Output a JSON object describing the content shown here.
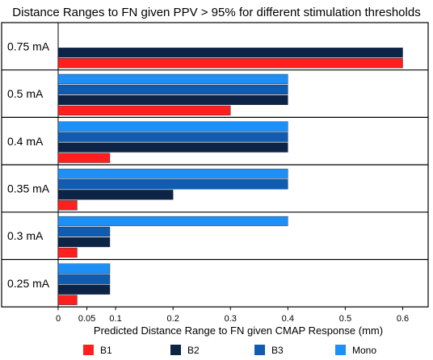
{
  "chart_data": {
    "type": "bar",
    "orientation": "horizontal",
    "title": "Distance Ranges to FN given PPV > 95% for different stimulation thresholds",
    "xlabel": "Predicted Distance Range to FN given CMAP Response (mm)",
    "ylabel": "",
    "xlim": [
      0,
      0.65
    ],
    "xticks": [
      0,
      0.05,
      0.1,
      0.2,
      0.3,
      0.4,
      0.5,
      0.6
    ],
    "xtick_labels": [
      "0",
      "0.05",
      "0.1",
      "0.2",
      "0.3",
      "0.4",
      "0.5",
      "0.6"
    ],
    "grid": false,
    "legend_position": "bottom",
    "categories": [
      "0.75 mA",
      "0.5  mA",
      "0.4  mA",
      "0.35 mA",
      "0.3  mA",
      "0.25 mA"
    ],
    "series": [
      {
        "name": "B1",
        "color": "#ff1f1f",
        "values": [
          0.6,
          0.3,
          0.09,
          0.033,
          0.033,
          0.033
        ]
      },
      {
        "name": "B2",
        "color": "#0d2446",
        "values": [
          0.6,
          0.4,
          0.4,
          0.2,
          0.09,
          0.09
        ]
      },
      {
        "name": "B3",
        "color": "#0f5cb0",
        "values": [
          null,
          0.4,
          0.4,
          0.4,
          0.09,
          0.09
        ]
      },
      {
        "name": "Mono",
        "color": "#1e90f5",
        "values": [
          null,
          0.4,
          0.4,
          0.4,
          0.4,
          0.09
        ]
      }
    ]
  }
}
